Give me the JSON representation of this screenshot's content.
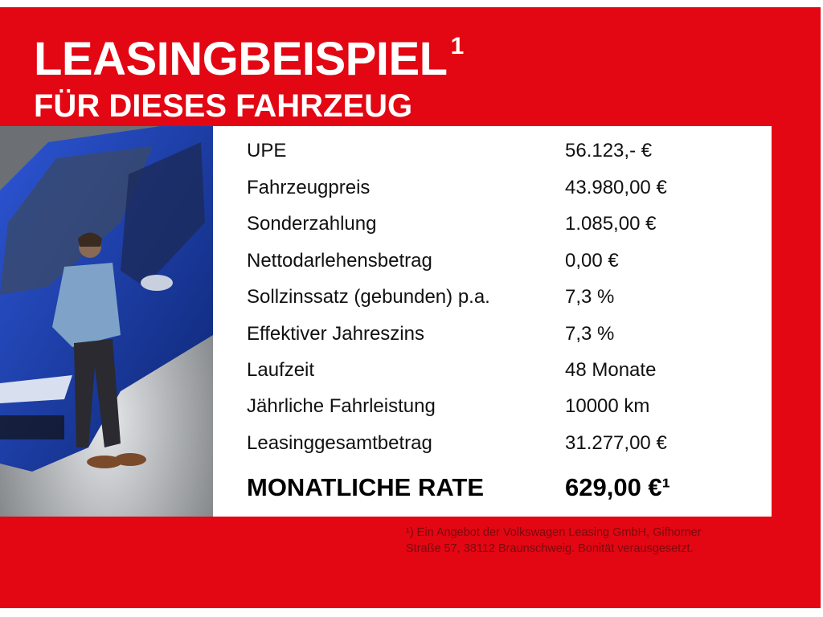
{
  "header": {
    "title": "LEASINGBEISPIEL",
    "title_sup": "1",
    "subtitle": "FÜR DIESES FAHRZEUG"
  },
  "colors": {
    "brand_red": "#e30613",
    "panel": "#ffffff",
    "car_blue": "#1a3fb0"
  },
  "photo": {
    "description_icon": "car-and-man-photo"
  },
  "table": {
    "rows": [
      {
        "label": "UPE",
        "value": "56.123,- €"
      },
      {
        "label": "Fahrzeugpreis",
        "value": "43.980,00 €"
      },
      {
        "label": "Sonderzahlung",
        "value": "1.085,00 €"
      },
      {
        "label": "Nettodarlehensbetrag",
        "value": "0,00 €"
      },
      {
        "label": "Sollzinssatz (gebunden) p.a.",
        "value": "7,3 %"
      },
      {
        "label": "Effektiver Jahreszins",
        "value": "7,3 %"
      },
      {
        "label": "Laufzeit",
        "value": "48 Monate"
      },
      {
        "label": "Jährliche Fahrleistung",
        "value": "10000 km"
      },
      {
        "label": "Leasinggesamtbetrag",
        "value": "31.277,00 €"
      }
    ],
    "rate_label": "MONATLICHE RATE",
    "rate_value": "629,00 €¹"
  },
  "footnote": {
    "line1": "¹) Ein Angebot der Volkswagen Leasing GmbH, Gifhorner",
    "line2": "Straße 57, 38112 Braunschweig. Bonität verausgesetzt."
  }
}
